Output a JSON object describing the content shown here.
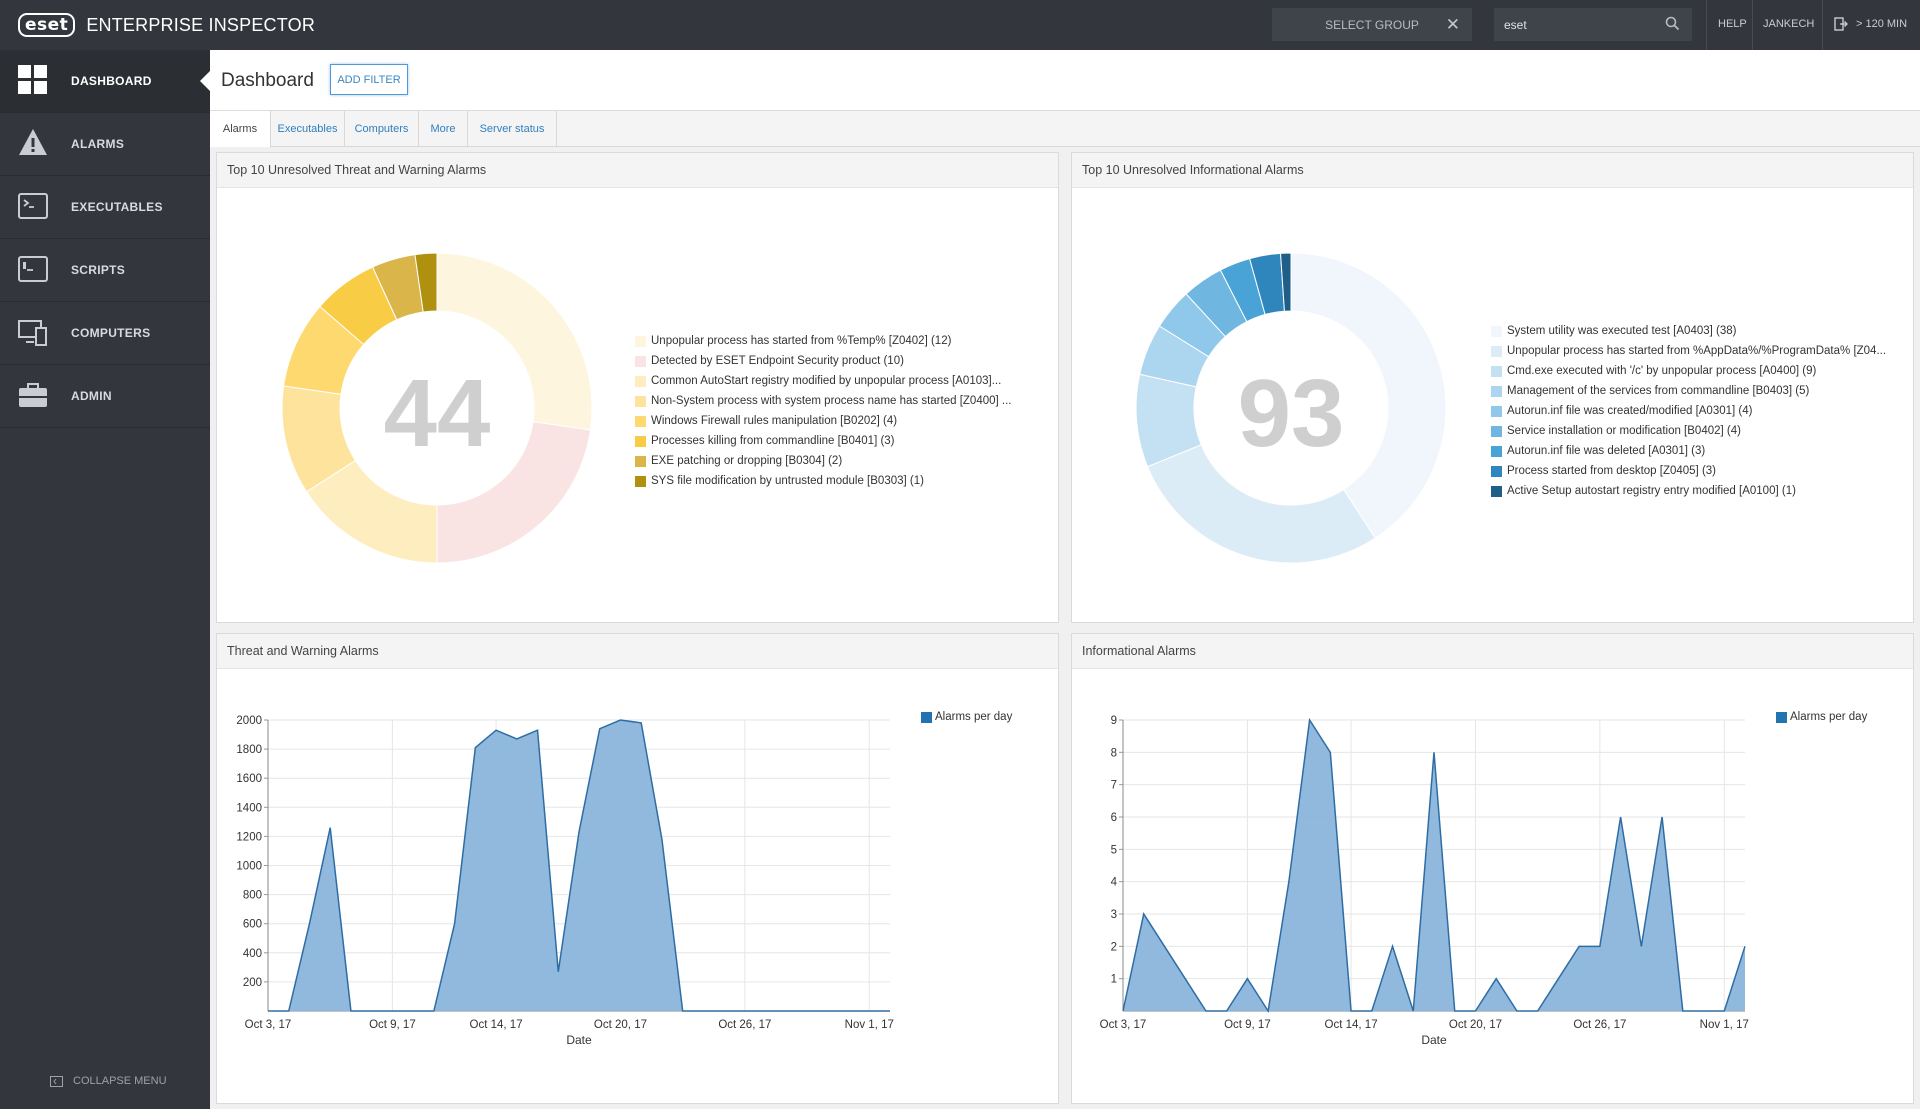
{
  "app": {
    "logo": "eset",
    "title": "ENTERPRISE INSPECTOR",
    "select_group": "SELECT GROUP",
    "search_value": "eset",
    "help": "HELP",
    "user": "JANKECH",
    "session": "> 120 MIN"
  },
  "sidebar": {
    "items": [
      {
        "label": "DASHBOARD",
        "icon": "dashboard-icon"
      },
      {
        "label": "ALARMS",
        "icon": "warning-icon"
      },
      {
        "label": "EXECUTABLES",
        "icon": "terminal-icon"
      },
      {
        "label": "SCRIPTS",
        "icon": "script-icon"
      },
      {
        "label": "COMPUTERS",
        "icon": "computers-icon"
      },
      {
        "label": "ADMIN",
        "icon": "briefcase-icon"
      }
    ],
    "collapse": "COLLAPSE MENU"
  },
  "header": {
    "title": "Dashboard",
    "add_filter": "ADD FILTER"
  },
  "tabs": [
    "Alarms",
    "Executables",
    "Computers",
    "More",
    "Server status"
  ],
  "panels": {
    "threat_donut": {
      "title": "Top 10 Unresolved Threat and Warning Alarms",
      "total": "44"
    },
    "info_donut": {
      "title": "Top 10 Unresolved Informational Alarms",
      "total": "93"
    },
    "threat_area": {
      "title": "Threat and Warning Alarms"
    },
    "info_area": {
      "title": "Informational Alarms"
    }
  },
  "colors": {
    "topbar": "#33373d",
    "sidebar": "#33373d",
    "accent": "#2f7fbf",
    "area_fill": "#8ab5db",
    "area_stroke": "#2e6da4"
  },
  "chart_data": [
    {
      "type": "pie",
      "title": "Top 10 Unresolved Threat and Warning Alarms",
      "center_label": "44",
      "labels": [
        "Unpopular process has started from %Temp% [Z0402] (12)",
        "Detected by ESET Endpoint Security product (10)",
        "Common AutoStart registry modified by unpopular process [A0103]...",
        "Non-System process with system process name has started [Z0400] ...",
        "Windows Firewall rules manipulation [B0202] (4)",
        "Processes killing from commandline [B0401] (3)",
        "EXE patching or dropping [B0304] (2)",
        "SYS file modification by untrusted module [B0303] (1)"
      ],
      "values": [
        12,
        10,
        7,
        5,
        4,
        3,
        2,
        1
      ],
      "colors": [
        "#fdf5de",
        "#f9e3e3",
        "#fdedbf",
        "#fde39c",
        "#fdd96f",
        "#f9cc45",
        "#d9b54a",
        "#b0900f"
      ]
    },
    {
      "type": "pie",
      "title": "Top 10 Unresolved Informational Alarms",
      "center_label": "93",
      "labels": [
        "System utility was executed test [A0403] (38)",
        "Unpopular process has started from %AppData%/%ProgramData% [Z04...",
        "Cmd.exe executed with '/c' by unpopular process [A0400] (9)",
        "Management of the services from commandline [B0403] (5)",
        "Autorun.inf file was created/modified [A0301] (4)",
        "Service installation or modification [B0402] (4)",
        "Autorun.inf file was deleted [A0301] (3)",
        "Process started from desktop [Z0405] (3)",
        "Active Setup autostart registry entry modified [A0100] (1)"
      ],
      "values": [
        38,
        26,
        9,
        5,
        4,
        4,
        3,
        3,
        1
      ],
      "colors": [
        "#f0f6fc",
        "#dcecf7",
        "#c4e1f3",
        "#acd6ef",
        "#8fc8ea",
        "#6fb7e1",
        "#4aa3d6",
        "#2f86bd",
        "#1f5e87"
      ]
    },
    {
      "type": "area",
      "title": "Threat and Warning Alarms",
      "xlabel": "Date",
      "ylabel": "",
      "ylim": [
        0,
        2000
      ],
      "yticks": [
        200,
        400,
        600,
        800,
        1000,
        1200,
        1400,
        1600,
        1800,
        2000
      ],
      "xticks": [
        "Oct 3, 17",
        "Oct 9, 17",
        "Oct 14, 17",
        "Oct 20, 17",
        "Oct 26, 17",
        "Nov 1, 17"
      ],
      "x_range": [
        "2017-10-03",
        "2017-11-02"
      ],
      "series": [
        {
          "name": "Alarms per day",
          "x": [
            "2017-10-03",
            "2017-10-04",
            "2017-10-05",
            "2017-10-06",
            "2017-10-07",
            "2017-10-08",
            "2017-10-09",
            "2017-10-10",
            "2017-10-11",
            "2017-10-12",
            "2017-10-13",
            "2017-10-14",
            "2017-10-15",
            "2017-10-16",
            "2017-10-17",
            "2017-10-18",
            "2017-10-19",
            "2017-10-20",
            "2017-10-21",
            "2017-10-22",
            "2017-10-23",
            "2017-10-24",
            "2017-10-25",
            "2017-10-26",
            "2017-10-27",
            "2017-10-28",
            "2017-10-29",
            "2017-10-30",
            "2017-10-31",
            "2017-11-01",
            "2017-11-02"
          ],
          "values": [
            0,
            0,
            600,
            1260,
            0,
            0,
            0,
            0,
            0,
            600,
            1810,
            1930,
            1870,
            1930,
            270,
            1230,
            1940,
            2000,
            1980,
            1180,
            0,
            0,
            0,
            0,
            0,
            0,
            0,
            0,
            0,
            0,
            0
          ]
        }
      ]
    },
    {
      "type": "area",
      "title": "Informational Alarms",
      "xlabel": "Date",
      "ylabel": "",
      "ylim": [
        0,
        9
      ],
      "yticks": [
        1,
        2,
        3,
        4,
        5,
        6,
        7,
        8,
        9
      ],
      "xticks": [
        "Oct 3, 17",
        "Oct 9, 17",
        "Oct 14, 17",
        "Oct 20, 17",
        "Oct 26, 17",
        "Nov 1, 17"
      ],
      "x_range": [
        "2017-10-03",
        "2017-11-02"
      ],
      "series": [
        {
          "name": "Alarms per day",
          "x": [
            "2017-10-03",
            "2017-10-04",
            "2017-10-05",
            "2017-10-06",
            "2017-10-07",
            "2017-10-08",
            "2017-10-09",
            "2017-10-10",
            "2017-10-11",
            "2017-10-12",
            "2017-10-13",
            "2017-10-14",
            "2017-10-15",
            "2017-10-16",
            "2017-10-17",
            "2017-10-18",
            "2017-10-19",
            "2017-10-20",
            "2017-10-21",
            "2017-10-22",
            "2017-10-23",
            "2017-10-24",
            "2017-10-25",
            "2017-10-26",
            "2017-10-27",
            "2017-10-28",
            "2017-10-29",
            "2017-10-30",
            "2017-10-31",
            "2017-11-01",
            "2017-11-02"
          ],
          "values": [
            0,
            3,
            2,
            1,
            0,
            0,
            1,
            0,
            4,
            9,
            8,
            0,
            0,
            2,
            0,
            8,
            0,
            0,
            1,
            0,
            0,
            1,
            2,
            2,
            6,
            2,
            6,
            0,
            0,
            0,
            2
          ]
        }
      ]
    }
  ]
}
